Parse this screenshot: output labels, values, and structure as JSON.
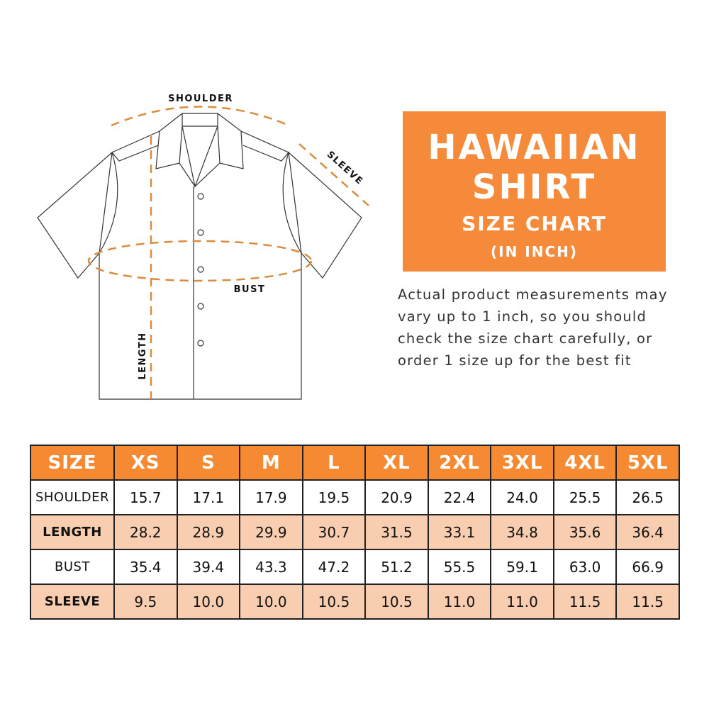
{
  "diagram": {
    "labels": {
      "shoulder": "SHOULDER",
      "sleeve": "SLEEVE",
      "bust": "BUST",
      "length": "LENGTH"
    },
    "dash_color": "#d98c3e"
  },
  "title_box": {
    "line1": "HAWAIIAN",
    "line2": "SHIRT",
    "line3": "SIZE CHART",
    "line4": "(IN INCH)",
    "color": "#f58a3a"
  },
  "note": "Actual product measurements may vary up to 1 inch, so you should check the size chart carefully, or order 1 size up for the best fit",
  "table": {
    "header_color": "#f58a33",
    "alt_row_color": "#f9cdb0",
    "columns": [
      "SIZE",
      "XS",
      "S",
      "M",
      "L",
      "XL",
      "2XL",
      "3XL",
      "4XL",
      "5XL"
    ],
    "rows": [
      {
        "label": "SHOULDER",
        "values": [
          "15.7",
          "17.1",
          "17.9",
          "19.5",
          "20.9",
          "22.4",
          "24.0",
          "25.5",
          "26.5"
        ]
      },
      {
        "label": "LENGTH",
        "values": [
          "28.2",
          "28.9",
          "29.9",
          "30.7",
          "31.5",
          "33.1",
          "34.8",
          "35.6",
          "36.4"
        ]
      },
      {
        "label": "BUST",
        "values": [
          "35.4",
          "39.4",
          "43.3",
          "47.2",
          "51.2",
          "55.5",
          "59.1",
          "63.0",
          "66.9"
        ]
      },
      {
        "label": "SLEEVE",
        "values": [
          "9.5",
          "10.0",
          "10.0",
          "10.5",
          "10.5",
          "11.0",
          "11.0",
          "11.5",
          "11.5"
        ]
      }
    ]
  }
}
